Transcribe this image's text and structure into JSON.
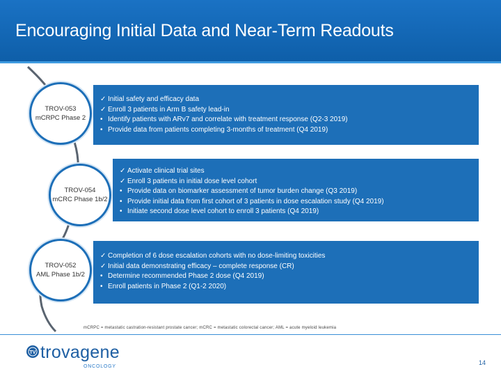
{
  "title": "Encouraging Initial Data and Near-Term Readouts",
  "programs": [
    {
      "name": "TROV-053",
      "indication": "mCRPC Phase 2",
      "items": [
        {
          "marker": "✓",
          "text": "Initial safety and efficacy data"
        },
        {
          "marker": "✓",
          "text": "Enroll 3 patients in Arm B safety lead-in"
        },
        {
          "marker": "•",
          "text": "Identify patients with ARv7 and correlate with treatment response (Q2-3 2019)"
        },
        {
          "marker": "•",
          "text": "Provide data from patients completing 3-months of treatment (Q4 2019)"
        }
      ]
    },
    {
      "name": "TROV-054",
      "indication": "mCRC Phase 1b/2",
      "items": [
        {
          "marker": "✓",
          "text": "Activate clinical trial sites"
        },
        {
          "marker": "✓",
          "text": "Enroll 3 patients in initial dose level cohort"
        },
        {
          "marker": "•",
          "text": "Provide data on biomarker assessment of tumor burden change (Q3 2019)"
        },
        {
          "marker": "•",
          "text": "Provide initial data from first cohort of 3 patients in dose escalation study (Q4 2019)"
        },
        {
          "marker": "•",
          "text": "Initiate second dose level cohort to enroll 3 patients (Q4 2019)"
        }
      ]
    },
    {
      "name": "TROV-052",
      "indication": "AML Phase 1b/2",
      "items": [
        {
          "marker": "✓",
          "text": "Completion of 6 dose escalation cohorts with no dose-limiting toxicities"
        },
        {
          "marker": "✓",
          "text": "Initial data demonstrating efficacy – complete response (CR)"
        },
        {
          "marker": "•",
          "text": "Determine recommended Phase 2 dose (Q4 2019)"
        },
        {
          "marker": "•",
          "text": "Enroll patients in Phase 2 (Q1-2 2020)"
        }
      ]
    }
  ],
  "footnote": "mCRPC = metastatic castration-resistant prostate cancer; mCRC = metastatic colorectal cancer; AML = acute myeloid leukemia",
  "logo": {
    "brand": "trovagene",
    "subtitle": "ONCOLOGY",
    "mark": "TV"
  },
  "page_number": "14",
  "colors": {
    "header": "#1a72c4",
    "box": "#1d6fb8",
    "logo": "#1e5fa3"
  }
}
